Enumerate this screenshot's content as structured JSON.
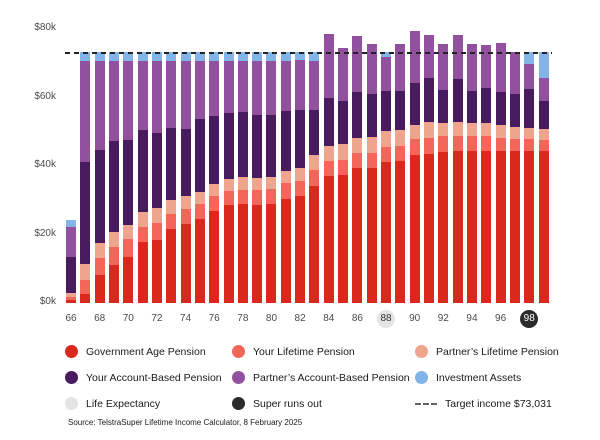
{
  "colors": {
    "government_age_pension": "#da291c",
    "your_lifetime_pension": "#f4665a",
    "partners_lifetime_pension": "#efa48d",
    "your_account_based_pension": "#471b5e",
    "partners_account_based_pension": "#91519f",
    "investment_assets": "#82b4e8",
    "life_expectancy": "#e4e4e4",
    "super_runs_out": "#2b2b2b",
    "target_line": "#222222"
  },
  "chart_data": {
    "type": "bar",
    "stacked": true,
    "x": [
      66,
      67,
      68,
      69,
      70,
      71,
      72,
      73,
      74,
      75,
      76,
      77,
      78,
      79,
      80,
      81,
      82,
      83,
      84,
      85,
      86,
      87,
      88,
      89,
      90,
      91,
      92,
      93,
      94,
      95,
      96,
      97,
      98,
      99
    ],
    "x_tick_labels": [
      66,
      68,
      70,
      72,
      74,
      76,
      78,
      80,
      82,
      84,
      86,
      88,
      90,
      92,
      94,
      96,
      98
    ],
    "y_ticks": [
      "$0k",
      "$20k",
      "$40k",
      "$60k",
      "$80k"
    ],
    "y_tick_values": [
      0,
      20,
      40,
      60,
      80
    ],
    "ylim": [
      0,
      80
    ],
    "units": "$k per year",
    "series": [
      {
        "name": "Government Age Pension",
        "color_key": "government_age_pension",
        "values": [
          0.8,
          2.7,
          8.1,
          11.0,
          13.5,
          17.9,
          18.4,
          21.5,
          23.0,
          24.5,
          27.0,
          28.5,
          28.8,
          28.5,
          28.8,
          30.5,
          31.2,
          34.3,
          37.1,
          37.4,
          39.3,
          39.5,
          41.2,
          41.4,
          43.1,
          43.6,
          44.1,
          44.4,
          44.4,
          44.4,
          44.4,
          44.4,
          44.4,
          44.4
        ]
      },
      {
        "name": "Your Lifetime Pension",
        "color_key": "your_lifetime_pension",
        "values": [
          1.0,
          3.9,
          4.9,
          5.4,
          5.3,
          4.4,
          4.9,
          4.5,
          4.5,
          4.3,
          4.2,
          4.2,
          4.3,
          4.4,
          4.4,
          4.4,
          4.5,
          4.4,
          4.3,
          4.3,
          4.4,
          4.4,
          4.4,
          4.4,
          4.7,
          4.7,
          4.6,
          4.5,
          4.4,
          4.4,
          3.8,
          3.4,
          3.4,
          3.2
        ]
      },
      {
        "name": "Partner’s Lifetime Pension",
        "color_key": "partners_lifetime_pension",
        "values": [
          1.2,
          4.9,
          4.4,
          4.4,
          4.0,
          4.4,
          4.3,
          4.0,
          3.8,
          3.7,
          3.6,
          3.5,
          3.6,
          3.7,
          3.7,
          3.6,
          3.6,
          4.4,
          4.4,
          4.6,
          4.6,
          4.6,
          4.6,
          4.7,
          4.3,
          4.5,
          4.0,
          4.0,
          3.9,
          3.9,
          3.7,
          3.6,
          3.4,
          3.1
        ]
      },
      {
        "name": "Your Account-Based Pension",
        "color_key": "your_account_based_pension",
        "values": [
          10.5,
          29.8,
          27.3,
          26.4,
          24.9,
          23.9,
          22.0,
          21.0,
          19.6,
          21.1,
          19.8,
          19.2,
          19.1,
          18.2,
          18.1,
          17.6,
          17.0,
          13.4,
          14.1,
          12.7,
          13.2,
          12.5,
          11.8,
          11.5,
          12.2,
          13.0,
          9.5,
          12.4,
          9.2,
          10.1,
          9.7,
          9.5,
          11.2,
          8.3
        ]
      },
      {
        "name": "Partner’s Account-Based Pension",
        "color_key": "partners_account_based_pension",
        "values": [
          8.8,
          29.5,
          26.1,
          23.6,
          23.1,
          20.2,
          21.2,
          19.8,
          19.9,
          17.2,
          16.2,
          15.4,
          15.0,
          16.0,
          15.8,
          14.7,
          14.7,
          14.3,
          18.5,
          15.5,
          16.6,
          14.5,
          9.8,
          13.5,
          15.1,
          12.4,
          13.3,
          12.9,
          13.6,
          12.5,
          14.4,
          12.5,
          7.5,
          6.8
        ]
      },
      {
        "name": "Investment Assets",
        "color_key": "investment_assets",
        "values": [
          1.9,
          2.5,
          2.5,
          2.5,
          2.5,
          2.5,
          2.5,
          2.5,
          2.5,
          2.5,
          2.5,
          2.5,
          2.5,
          2.5,
          2.5,
          2.5,
          2.3,
          2.5,
          0,
          0,
          0,
          0,
          1.5,
          0,
          0,
          0,
          0,
          0,
          0,
          0,
          0,
          0,
          3.5,
          7.6
        ]
      }
    ],
    "target_line": {
      "value": 73.031,
      "label": "Target income $73,031"
    },
    "markers": {
      "life_expectancy_age": 88,
      "super_runs_out_age": 98
    },
    "legend_position": "bottom",
    "grid": false
  },
  "legend": {
    "items": [
      {
        "label": "Government Age Pension",
        "color_key": "government_age_pension",
        "kind": "dot"
      },
      {
        "label": "Your Lifetime Pension",
        "color_key": "your_lifetime_pension",
        "kind": "dot"
      },
      {
        "label": "Partner’s Lifetime Pension",
        "color_key": "partners_lifetime_pension",
        "kind": "dot"
      },
      {
        "label": "Your Account-Based Pension",
        "color_key": "your_account_based_pension",
        "kind": "dot"
      },
      {
        "label": "Partner’s Account-Based Pension",
        "color_key": "partners_account_based_pension",
        "kind": "dot"
      },
      {
        "label": "Investment Assets",
        "color_key": "investment_assets",
        "kind": "dot"
      },
      {
        "label": "Life Expectancy",
        "color_key": "life_expectancy",
        "kind": "dot"
      },
      {
        "label": "Super runs out",
        "color_key": "super_runs_out",
        "kind": "dot"
      },
      {
        "label": "Target income $73,031",
        "color_key": "target_line",
        "kind": "dash"
      }
    ]
  },
  "source_note": "Source: TelstraSuper Lifetime Income Calculator, 8 February 2025"
}
